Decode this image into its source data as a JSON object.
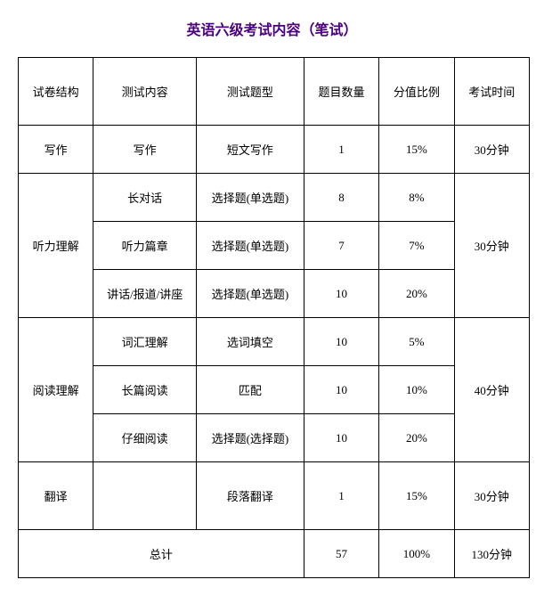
{
  "title": "英语六级考试内容（笔试）",
  "headers": {
    "c1": "试卷结构",
    "c2": "测试内容",
    "c3": "测试题型",
    "c4": "题目数量",
    "c5": "分值比例",
    "c6": "考试时间"
  },
  "sections": {
    "writing": {
      "name": "写作",
      "content": "写作",
      "type": "短文写作",
      "count": "1",
      "percent": "15%",
      "time": "30分钟"
    },
    "listening": {
      "name": "听力理解",
      "time": "30分钟",
      "rows": [
        {
          "content": "长对话",
          "type": "选择题(单选题)",
          "count": "8",
          "percent": "8%"
        },
        {
          "content": "听力篇章",
          "type": "选择题(单选题)",
          "count": "7",
          "percent": "7%"
        },
        {
          "content": "讲话/报道/讲座",
          "type": "选择题(单选题)",
          "count": "10",
          "percent": "20%"
        }
      ]
    },
    "reading": {
      "name": "阅读理解",
      "time": "40分钟",
      "rows": [
        {
          "content": "词汇理解",
          "type": "选词填空",
          "count": "10",
          "percent": "5%"
        },
        {
          "content": "长篇阅读",
          "type": "匹配",
          "count": "10",
          "percent": "10%"
        },
        {
          "content": "仔细阅读",
          "type": "选择题(选择题)",
          "count": "10",
          "percent": "20%"
        }
      ]
    },
    "translation": {
      "name": "翻译",
      "content": "",
      "type": "段落翻译",
      "count": "1",
      "percent": "15%",
      "time": "30分钟"
    }
  },
  "total": {
    "label": "总计",
    "count": "57",
    "percent": "100%",
    "time": "130分钟"
  },
  "style": {
    "title_color": "#4b0082",
    "border_color": "#000000",
    "background": "#ffffff",
    "font": "SimSun"
  }
}
